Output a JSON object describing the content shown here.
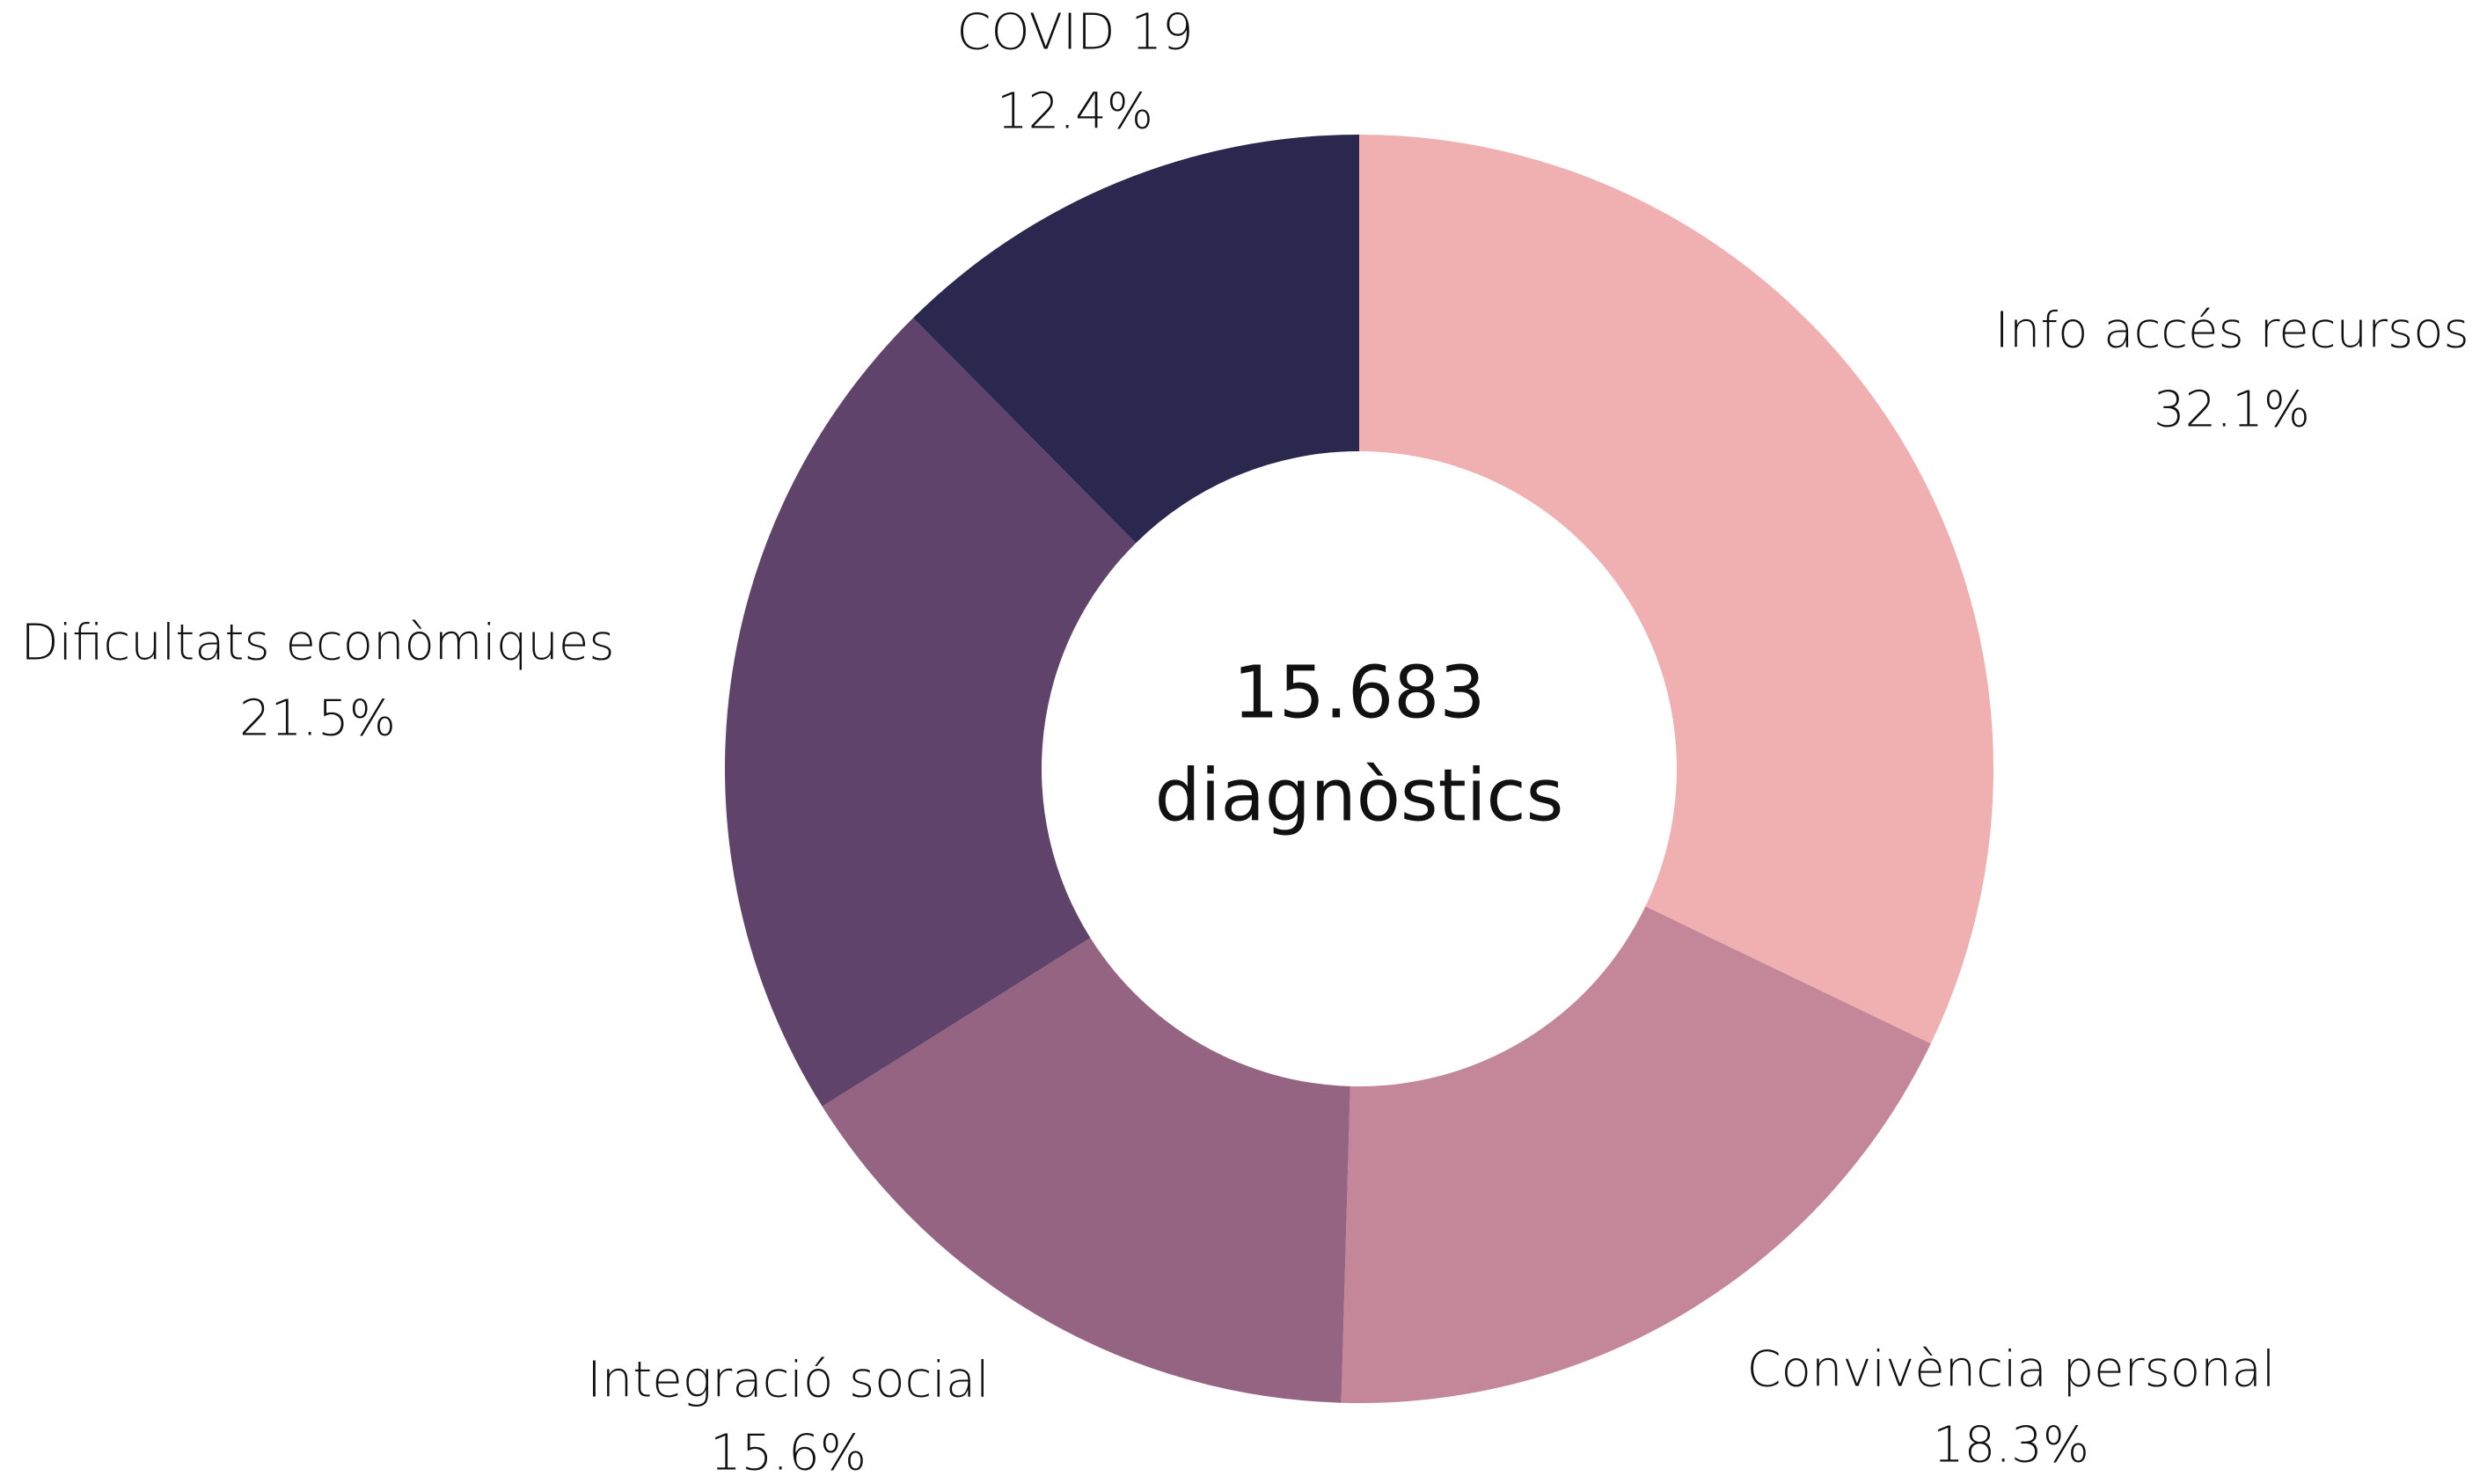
{
  "chart_data": {
    "type": "pie",
    "categories": [
      "Info accés recursos",
      "Convivència personal",
      "Integració social",
      "Dificultats econòmiques",
      "COVID 19"
    ],
    "values": [
      32.1,
      18.3,
      15.6,
      21.5,
      12.4
    ],
    "value_labels": [
      "32.1%",
      "18.3%",
      "15.6%",
      "21.5%",
      "12.4%"
    ],
    "colors": [
      "#f0afb0",
      "#c48699",
      "#956483",
      "#5f436a",
      "#2b2850"
    ],
    "center_text": [
      "15.683",
      "diagnòstics"
    ]
  }
}
